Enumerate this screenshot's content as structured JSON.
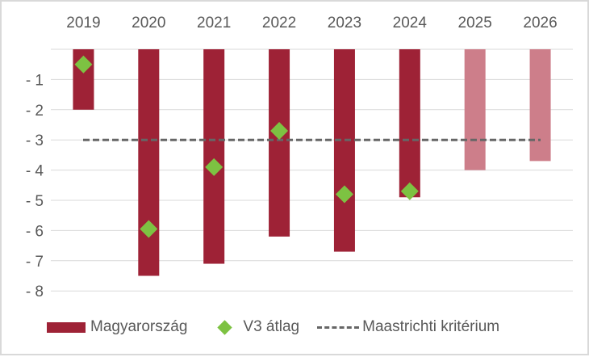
{
  "chart_data": {
    "type": "bar",
    "categories": [
      "2019",
      "2020",
      "2021",
      "2022",
      "2023",
      "2024",
      "2025",
      "2026"
    ],
    "series": [
      {
        "name": "Magyarország",
        "type": "bar",
        "values": [
          -2.0,
          -7.5,
          -7.1,
          -6.2,
          -6.7,
          -4.9,
          -4.0,
          -3.7
        ],
        "color": "#9e2236",
        "forecast_color": "#cd7e8a",
        "forecast_categories": [
          "2025",
          "2026"
        ]
      },
      {
        "name": "V3 átlag",
        "type": "scatter",
        "marker": "diamond",
        "values": [
          -0.5,
          -5.95,
          -3.9,
          -2.7,
          -4.8,
          -4.7,
          null,
          null
        ],
        "color": "#7dc242"
      },
      {
        "name": "Maastrichti kritérium",
        "type": "line",
        "style": "dashed",
        "value": -3,
        "color": "#666666"
      }
    ],
    "yticks": [
      "- 1",
      "- 2",
      "- 3",
      "- 4",
      "- 5",
      "- 6",
      "- 7",
      "- 8"
    ],
    "ylim": [
      -8,
      0
    ],
    "xaxis_position": "top",
    "grid": true,
    "legend": "bottom"
  }
}
